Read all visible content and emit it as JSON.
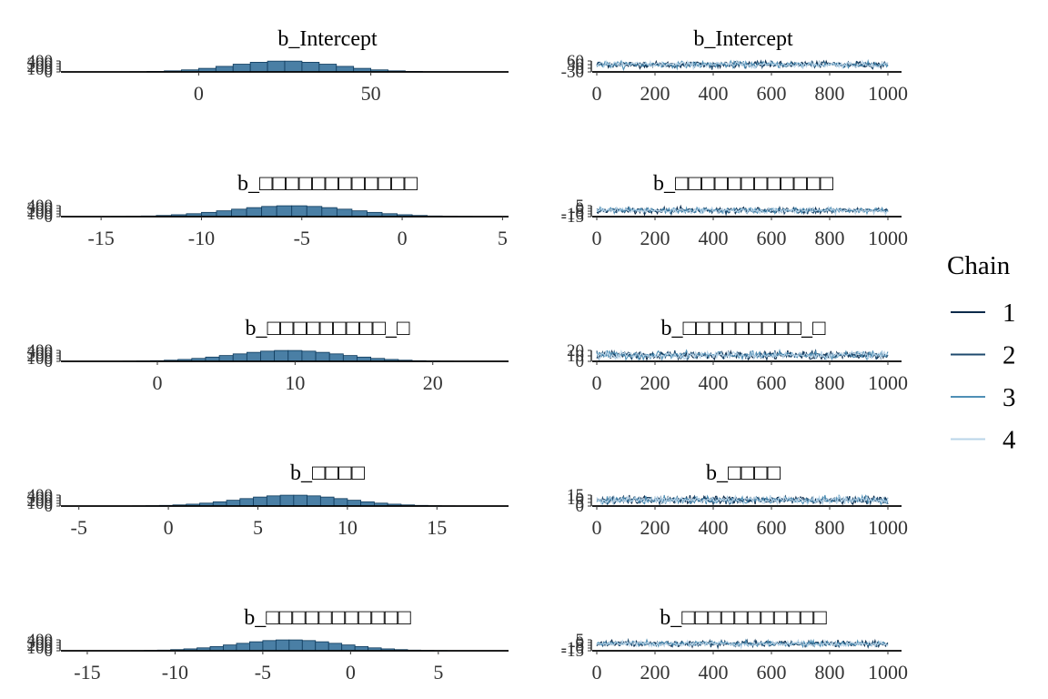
{
  "colors": {
    "hist_fill": "#4a7fa5",
    "hist_stroke": "#0e3a5c",
    "chains": [
      "#0b2a4a",
      "#1e4a6e",
      "#4f8fb5",
      "#b9d4e8"
    ]
  },
  "legend": {
    "title": "Chain",
    "items": [
      "1",
      "2",
      "3",
      "4"
    ]
  },
  "chart_data": [
    {
      "type": "bar",
      "panel": "histogram",
      "title": "b_Intercept",
      "xlim": [
        -40,
        90
      ],
      "xticks": [
        "0",
        "50"
      ],
      "xtick_values": [
        0,
        50
      ],
      "yticks": [
        "0",
        "100",
        "200",
        "300",
        "400"
      ],
      "mean": 25,
      "sd": 15,
      "bin_width": 5,
      "peak": 400
    },
    {
      "type": "line",
      "panel": "trace",
      "title": "b_Intercept",
      "xlim": [
        0,
        1000
      ],
      "xticks": [
        "0",
        "200",
        "400",
        "600",
        "800",
        "1000"
      ],
      "yticks": [
        "-30",
        "0",
        "30",
        "60"
      ],
      "ylim": [
        -30,
        60
      ],
      "mean": 25,
      "sd": 15,
      "series": [
        {
          "name": "1"
        },
        {
          "name": "2"
        },
        {
          "name": "3"
        },
        {
          "name": "4"
        }
      ]
    },
    {
      "type": "bar",
      "panel": "histogram",
      "title": "b_□□□□□□□□□□□□",
      "xlim": [
        -17,
        5.3
      ],
      "xticks": [
        "-15",
        "-10",
        "-5",
        "0",
        "5"
      ],
      "xtick_values": [
        -15,
        -10,
        -5,
        0,
        5
      ],
      "yticks": [
        "0",
        "100",
        "200",
        "300",
        "400"
      ],
      "mean": -5.5,
      "sd": 3,
      "bin_width": 0.75,
      "peak": 400
    },
    {
      "type": "line",
      "panel": "trace",
      "title": "b_□□□□□□□□□□□□",
      "xlim": [
        0,
        1000
      ],
      "xticks": [
        "0",
        "200",
        "400",
        "600",
        "800",
        "1000"
      ],
      "yticks": [
        "-15",
        "-10",
        "-5",
        "0",
        "5"
      ],
      "ylim": [
        -15,
        5
      ],
      "mean": -5.5,
      "sd": 3,
      "series": [
        {
          "name": "1"
        },
        {
          "name": "2"
        },
        {
          "name": "3"
        },
        {
          "name": "4"
        }
      ]
    },
    {
      "type": "bar",
      "panel": "histogram",
      "title": "b_□□□□□□□□□_□",
      "xlim": [
        -7,
        25.5
      ],
      "xticks": [
        "0",
        "10",
        "20"
      ],
      "xtick_values": [
        0,
        10,
        20
      ],
      "yticks": [
        "0",
        "100",
        "200",
        "300",
        "400"
      ],
      "mean": 9.5,
      "sd": 4,
      "bin_width": 1,
      "peak": 400
    },
    {
      "type": "line",
      "panel": "trace",
      "title": "b_□□□□□□□□□_□",
      "xlim": [
        0,
        1000
      ],
      "xticks": [
        "0",
        "200",
        "400",
        "600",
        "800",
        "1000"
      ],
      "yticks": [
        "0",
        "10",
        "20"
      ],
      "ylim": [
        0,
        20
      ],
      "mean": 9.5,
      "sd": 4,
      "series": [
        {
          "name": "1"
        },
        {
          "name": "2"
        },
        {
          "name": "3"
        },
        {
          "name": "4"
        }
      ]
    },
    {
      "type": "bar",
      "panel": "histogram",
      "title": "b_□□□□",
      "xlim": [
        -6,
        19
      ],
      "xticks": [
        "-5",
        "0",
        "5",
        "10",
        "15"
      ],
      "xtick_values": [
        -5,
        0,
        5,
        10,
        15
      ],
      "yticks": [
        "0",
        "100",
        "200",
        "300",
        "400"
      ],
      "mean": 7,
      "sd": 3,
      "bin_width": 0.75,
      "peak": 400
    },
    {
      "type": "line",
      "panel": "trace",
      "title": "b_□□□□",
      "xlim": [
        0,
        1000
      ],
      "xticks": [
        "0",
        "200",
        "400",
        "600",
        "800",
        "1000"
      ],
      "yticks": [
        "0",
        "5",
        "10",
        "15"
      ],
      "ylim": [
        0,
        15
      ],
      "mean": 7,
      "sd": 3,
      "series": [
        {
          "name": "1"
        },
        {
          "name": "2"
        },
        {
          "name": "3"
        },
        {
          "name": "4"
        }
      ]
    },
    {
      "type": "bar",
      "panel": "histogram",
      "title": "b_□□□□□□□□□□□",
      "xlim": [
        -16.5,
        9
      ],
      "xticks": [
        "-15",
        "-10",
        "-5",
        "0",
        "5"
      ],
      "xtick_values": [
        -15,
        -10,
        -5,
        0,
        5
      ],
      "yticks": [
        "0",
        "100",
        "200",
        "300",
        "400"
      ],
      "mean": -3.5,
      "sd": 3,
      "bin_width": 0.75,
      "peak": 400
    },
    {
      "type": "line",
      "panel": "trace",
      "title": "b_□□□□□□□□□□□",
      "xlim": [
        0,
        1000
      ],
      "xticks": [
        "0",
        "200",
        "400",
        "600",
        "800",
        "1000"
      ],
      "yticks": [
        "-15",
        "-10",
        "-5",
        "0",
        "5"
      ],
      "ylim": [
        -15,
        5
      ],
      "mean": -3.5,
      "sd": 3,
      "series": [
        {
          "name": "1"
        },
        {
          "name": "2"
        },
        {
          "name": "3"
        },
        {
          "name": "4"
        }
      ]
    }
  ]
}
